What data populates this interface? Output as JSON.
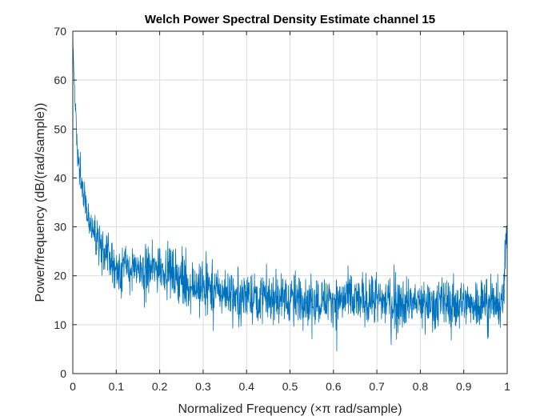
{
  "chart_data": {
    "type": "line",
    "title": "Welch Power Spectral Density Estimate channel 15",
    "xlabel": "Normalized Frequency  (×π rad/sample)",
    "ylabel": "Power/frequency (dB/(rad/sample))",
    "xlim": [
      0,
      1
    ],
    "ylim": [
      0,
      70
    ],
    "xticks": [
      "0",
      "0.1",
      "0.2",
      "0.3",
      "0.4",
      "0.5",
      "0.6",
      "0.7",
      "0.8",
      "0.9",
      "1"
    ],
    "yticks": [
      "0",
      "10",
      "20",
      "30",
      "40",
      "50",
      "60",
      "70"
    ],
    "grid": true,
    "series": [
      {
        "color": "#0072BD",
        "x": [
          0.0,
          0.002,
          0.005,
          0.01,
          0.015,
          0.02,
          0.025,
          0.03,
          0.04,
          0.05,
          0.06,
          0.07,
          0.08,
          0.09,
          0.1,
          0.12,
          0.14,
          0.16,
          0.18,
          0.2,
          0.22,
          0.24,
          0.26,
          0.28,
          0.3,
          0.33,
          0.36,
          0.4,
          0.45,
          0.5,
          0.55,
          0.6,
          0.65,
          0.7,
          0.75,
          0.8,
          0.85,
          0.9,
          0.95,
          0.99,
          1.0
        ],
        "y": [
          69,
          63,
          56,
          47,
          43,
          40,
          37,
          34,
          31,
          29,
          27,
          25,
          24,
          23,
          22,
          21.5,
          21,
          21,
          21,
          22,
          21,
          20,
          19,
          18,
          17.5,
          17,
          16.5,
          16,
          15.5,
          15.5,
          15,
          15,
          15,
          15,
          14.5,
          14.5,
          14.5,
          14.5,
          14.5,
          14,
          30
        ]
      }
    ]
  }
}
